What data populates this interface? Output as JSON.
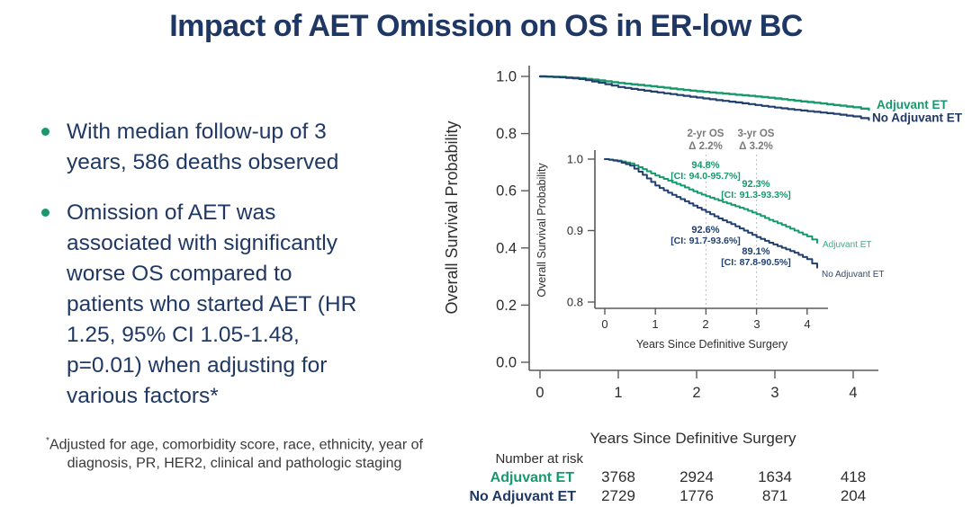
{
  "title": "Impact of AET Omission on OS in ER-low BC",
  "bullets": [
    {
      "lines": [
        "With median follow-up of 3",
        "years, 586 deaths observed"
      ]
    },
    {
      "lines": [
        "Omission of AET was",
        "associated with significantly",
        "worse OS compared to",
        "patients who started AET (HR",
        "1.25, 95% CI 1.05-1.48,",
        "p=0.01) when adjusting for",
        "various factors*"
      ]
    }
  ],
  "footnote": {
    "marker": "*",
    "lines": [
      "Adjusted for age, comorbidity score, race, ethnicity,  year of",
      "diagnosis, PR, HER2, clinical and pathologic staging"
    ]
  },
  "colors": {
    "navy_text": "#1F3864",
    "green": "#17996B",
    "curve_navy": "#21406F",
    "gray_annotation": "#7A7A7A"
  },
  "chart_data": {
    "type": "line",
    "subtype": "kaplan-meier",
    "title": "",
    "xlabel": "Years Since Definitive Surgery",
    "ylabel": "Overall Survival Probability",
    "main": {
      "xticks": [
        "0",
        "1",
        "2",
        "3",
        "4"
      ],
      "yticks": [
        "1.0",
        "0.8",
        "0.6",
        "0.4",
        "0.2",
        "0.0"
      ],
      "xlim": [
        0,
        4.45
      ],
      "ylim": [
        0.0,
        1.0
      ],
      "grid": false,
      "legend_position": "right-of-curve-ends"
    },
    "inset": {
      "xlabel": "Years Since Definitive Surgery",
      "ylabel": "Overall Survival Probability",
      "xticks": [
        "0",
        "1",
        "2",
        "3",
        "4"
      ],
      "yticks": [
        "1.0",
        "0.9",
        "0.8"
      ],
      "xlim": [
        0,
        4.4
      ],
      "ylim": [
        0.8,
        1.0
      ],
      "refline_years": [
        2,
        3
      ]
    },
    "x_years": [
      0,
      0.25,
      0.5,
      0.75,
      1,
      1.25,
      1.5,
      1.75,
      2,
      2.25,
      2.5,
      2.75,
      3,
      3.25,
      3.5,
      3.75,
      4,
      4.2
    ],
    "series": [
      {
        "name": "Adjuvant ET",
        "color": "#17996B",
        "survival": [
          1.0,
          0.998,
          0.994,
          0.986,
          0.977,
          0.97,
          0.963,
          0.955,
          0.948,
          0.942,
          0.936,
          0.93,
          0.923,
          0.915,
          0.908,
          0.9,
          0.892,
          0.883
        ]
      },
      {
        "name": "No Adjuvant ET",
        "color": "#21406F",
        "survival": [
          1.0,
          0.997,
          0.991,
          0.978,
          0.963,
          0.953,
          0.944,
          0.935,
          0.926,
          0.917,
          0.909,
          0.9,
          0.891,
          0.883,
          0.876,
          0.869,
          0.86,
          0.848
        ]
      }
    ],
    "annotations": {
      "delta_labels": [
        {
          "line1": "2-yr OS",
          "line2": "Δ 2.2%",
          "year": 2
        },
        {
          "line1": "3-yr OS",
          "line2": "Δ 3.2%",
          "year": 3
        }
      ],
      "estimates": [
        {
          "series": "Adjuvant ET",
          "year": 2,
          "value": "94.8%",
          "ci": "[CI: 94.0-95.7%]"
        },
        {
          "series": "Adjuvant ET",
          "year": 3,
          "value": "92.3%",
          "ci": "[CI: 91.3-93.3%]"
        },
        {
          "series": "No Adjuvant ET",
          "year": 2,
          "value": "92.6%",
          "ci": "[CI: 91.7-93.6%]"
        },
        {
          "series": "No Adjuvant ET",
          "year": 3,
          "value": "89.1%",
          "ci": "[CI: 87.8-90.5%]"
        }
      ]
    },
    "number_at_risk": {
      "label": "Number at risk",
      "years": [
        "1",
        "2",
        "3",
        "4"
      ],
      "rows": [
        {
          "name": "Adjuvant ET",
          "values": [
            "3768",
            "2924",
            "1634",
            "418"
          ]
        },
        {
          "name": "No Adjuvant ET",
          "values": [
            "2729",
            "1776",
            "871",
            "204"
          ]
        }
      ]
    }
  }
}
